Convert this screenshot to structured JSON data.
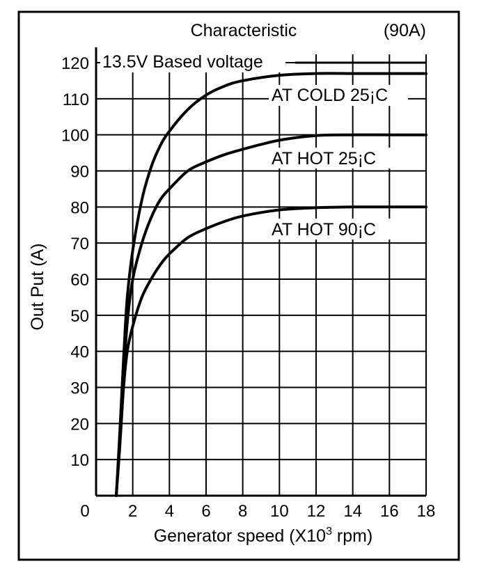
{
  "chart_data": {
    "type": "line",
    "title": "Characteristic",
    "subtitle": "(90A)",
    "xlabel": "Generator speed (X10³ rpm)",
    "ylabel": "Out Put (A)",
    "xlim": [
      0,
      18
    ],
    "ylim": [
      0,
      125
    ],
    "x_ticks": [
      0,
      2,
      4,
      6,
      8,
      10,
      12,
      14,
      16,
      18
    ],
    "y_ticks": [
      10,
      20,
      30,
      40,
      50,
      60,
      70,
      80,
      90,
      100,
      110,
      120
    ],
    "grid": true,
    "annotations": [
      {
        "text": "13.5V Based voltage",
        "x": 1.0,
        "y": 120
      },
      {
        "text": "AT COLD 25¡C",
        "x": 10.5,
        "y": 110
      },
      {
        "text": "AT HOT 25¡C",
        "x": 10.5,
        "y": 90
      },
      {
        "text": "AT HOT 90¡C",
        "x": 10.5,
        "y": 70
      }
    ],
    "series": [
      {
        "name": "AT COLD 25¡C",
        "x": [
          1.1,
          1.3,
          1.5,
          1.7,
          2.0,
          2.5,
          3.0,
          3.5,
          4.0,
          5.0,
          6.0,
          7.0,
          8.0,
          10.0,
          12.0,
          14.0,
          16.0,
          18.0
        ],
        "y": [
          0,
          18,
          38,
          55,
          68,
          82,
          91,
          97,
          101,
          107,
          111,
          113.5,
          115,
          116.5,
          117,
          117,
          117,
          117
        ]
      },
      {
        "name": "AT HOT 25¡C",
        "x": [
          1.1,
          1.3,
          1.5,
          1.7,
          2.0,
          2.5,
          3.0,
          3.5,
          4.0,
          5.0,
          6.0,
          7.0,
          8.0,
          10.0,
          12.0,
          14.0,
          16.0,
          18.0
        ],
        "y": [
          0,
          16,
          33,
          48,
          60,
          70,
          77,
          82,
          85,
          90,
          92.5,
          94.5,
          96,
          98.5,
          99.8,
          100,
          100,
          100
        ]
      },
      {
        "name": "AT HOT 90¡C",
        "x": [
          1.1,
          1.3,
          1.5,
          1.7,
          2.0,
          2.5,
          3.0,
          3.5,
          4.0,
          5.0,
          6.0,
          7.0,
          8.0,
          10.0,
          12.0,
          14.0,
          16.0,
          18.0
        ],
        "y": [
          0,
          14,
          30,
          40,
          47,
          55,
          60,
          64,
          67,
          71.5,
          74,
          76,
          77.5,
          79.2,
          79.8,
          80,
          80,
          80
        ]
      }
    ]
  }
}
